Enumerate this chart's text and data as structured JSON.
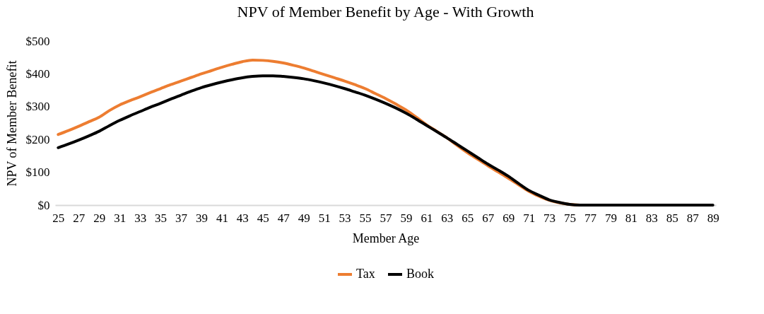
{
  "chart_data": {
    "type": "line",
    "title": "NPV of Member Benefit by Age - With Growth",
    "xlabel": "Member Age",
    "ylabel": "NPV of Member Benefit",
    "categories": [
      "25",
      null,
      "27",
      null,
      "29",
      null,
      "31",
      null,
      "33",
      null,
      "35",
      null,
      "37",
      null,
      "39",
      null,
      "41",
      null,
      "43",
      null,
      "45",
      null,
      "47",
      null,
      "49",
      null,
      "51",
      null,
      "53",
      null,
      "55",
      null,
      "57",
      null,
      "59",
      null,
      "61",
      null,
      "63",
      null,
      "65",
      null,
      "67",
      null,
      "69",
      null,
      "71",
      null,
      "73",
      null,
      "75",
      null,
      "77",
      null,
      "79",
      null,
      "81",
      null,
      "83",
      null,
      "85",
      null,
      "87",
      null,
      "89"
    ],
    "series": [
      {
        "name": "Tax",
        "color": "#ed7d31",
        "values": [
          215,
          227,
          240,
          254,
          268,
          288,
          305,
          318,
          330,
          343,
          355,
          367,
          378,
          389,
          400,
          410,
          420,
          429,
          437,
          442,
          441,
          438,
          433,
          426,
          418,
          408,
          398,
          388,
          378,
          367,
          355,
          340,
          325,
          308,
          290,
          268,
          245,
          225,
          205,
          182,
          160,
          140,
          120,
          101,
          82,
          62,
          42,
          27,
          15,
          7,
          2,
          0,
          null,
          null,
          null,
          null,
          null,
          null,
          null,
          null,
          null,
          null,
          null,
          null,
          null
        ]
      },
      {
        "name": "Book",
        "color": "#000000",
        "values": [
          175,
          186,
          198,
          211,
          225,
          242,
          258,
          272,
          285,
          298,
          310,
          323,
          335,
          347,
          358,
          367,
          375,
          382,
          388,
          392,
          394,
          394,
          392,
          389,
          385,
          379,
          372,
          364,
          355,
          345,
          335,
          323,
          310,
          296,
          280,
          262,
          243,
          224,
          205,
          185,
          165,
          145,
          125,
          107,
          88,
          66,
          45,
          30,
          16,
          8,
          2,
          0,
          0,
          0,
          0,
          0,
          0,
          0,
          0,
          0,
          0,
          0,
          0,
          0,
          0
        ]
      }
    ],
    "ylim": [
      0,
      500
    ],
    "yticks": [
      {
        "value": 0,
        "label": "$0"
      },
      {
        "value": 100,
        "label": "$100"
      },
      {
        "value": 200,
        "label": "$200"
      },
      {
        "value": 300,
        "label": "$300"
      },
      {
        "value": 400,
        "label": "$400"
      },
      {
        "value": 500,
        "label": "$500"
      }
    ],
    "grid": false,
    "legend": "bottom",
    "marker": "none",
    "line_style": "solid"
  }
}
